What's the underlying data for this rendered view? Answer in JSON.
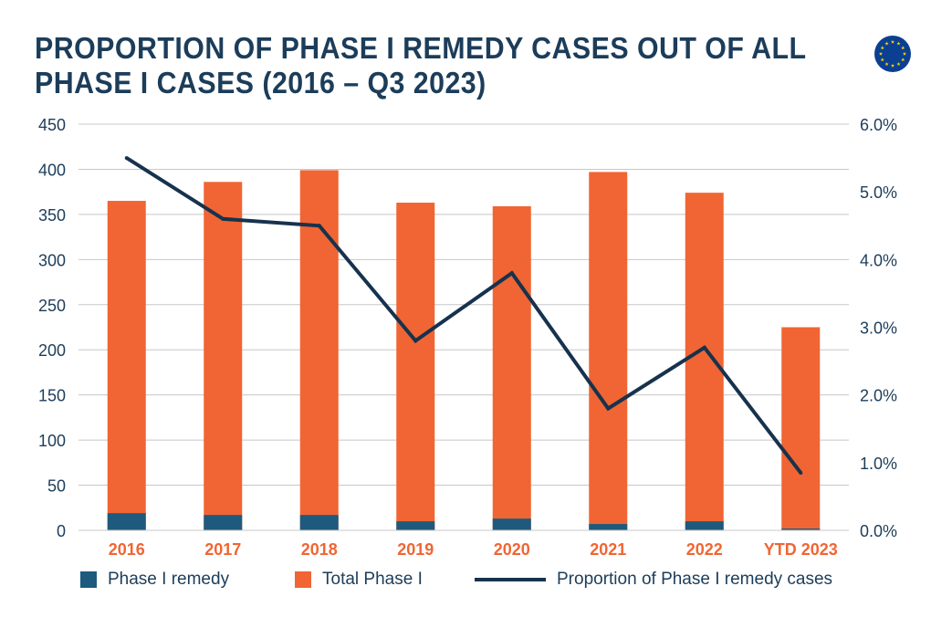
{
  "header": {
    "title_line1": "PROPORTION OF PHASE I REMEDY CASES OUT OF ALL",
    "title_line2": "PHASE I CASES (2016 – Q3 2023)"
  },
  "logo": {
    "icon": "eu-flag-icon",
    "color": "#0b3f91",
    "star_color": "#f5d20a"
  },
  "colors": {
    "remedy": "#1e5a7d",
    "total": "#f06533",
    "line": "#17324d",
    "grid": "#c8c8c8",
    "axis_text": "#1c3d5a",
    "category_text": "#f06533"
  },
  "chart_data": {
    "type": "bar",
    "categories": [
      "2016",
      "2017",
      "2018",
      "2019",
      "2020",
      "2021",
      "2022",
      "YTD 2023"
    ],
    "series": [
      {
        "name": "Phase I remedy",
        "type": "bar",
        "axis": "left",
        "values": [
          19,
          17,
          17,
          10,
          13,
          7,
          10,
          2
        ]
      },
      {
        "name": "Total Phase I",
        "type": "bar",
        "axis": "left",
        "values": [
          365,
          386,
          399,
          363,
          359,
          397,
          374,
          225
        ]
      },
      {
        "name": "Proportion of Phase I remedy cases",
        "type": "line",
        "axis": "right",
        "values": [
          5.5,
          4.6,
          4.5,
          2.8,
          3.8,
          1.8,
          2.7,
          0.85
        ]
      }
    ],
    "y_left": {
      "ylim": [
        0,
        450
      ],
      "ticks": [
        "0",
        "50",
        "100",
        "150",
        "200",
        "250",
        "300",
        "350",
        "400",
        "450"
      ]
    },
    "y_right": {
      "ylim": [
        0,
        6
      ],
      "ticks": [
        "0.0%",
        "1.0%",
        "2.0%",
        "3.0%",
        "4.0%",
        "5.0%",
        "6.0%"
      ]
    },
    "grid": true,
    "legend_position": "bottom"
  },
  "legend": {
    "items": [
      {
        "label": "Phase I remedy"
      },
      {
        "label": "Total Phase I"
      },
      {
        "label": "Proportion of Phase I remedy cases"
      }
    ]
  }
}
